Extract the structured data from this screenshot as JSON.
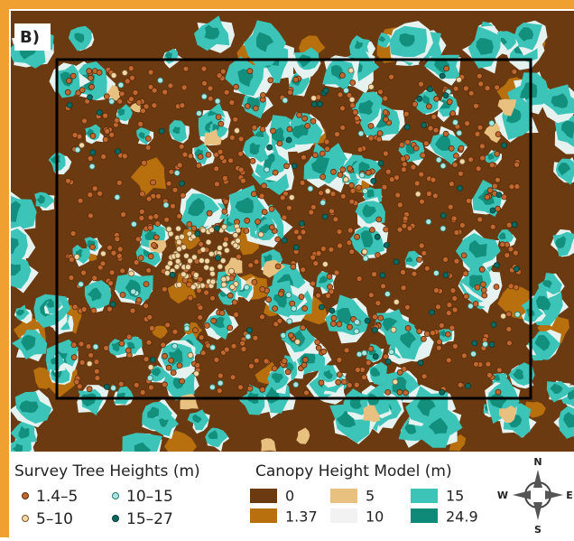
{
  "panel_label": "B)",
  "survey_legend": {
    "title": "Survey Tree Heights (m)",
    "items": [
      "1.4–5",
      "5–10",
      "10–15",
      "15–27"
    ]
  },
  "chm_legend": {
    "title": "Canopy Height Model (m)",
    "items": [
      "0",
      "1.37",
      "5",
      "10",
      "15",
      "24.9"
    ]
  },
  "compass": {
    "north": "N",
    "south": "S",
    "west": "W",
    "east": "E"
  }
}
